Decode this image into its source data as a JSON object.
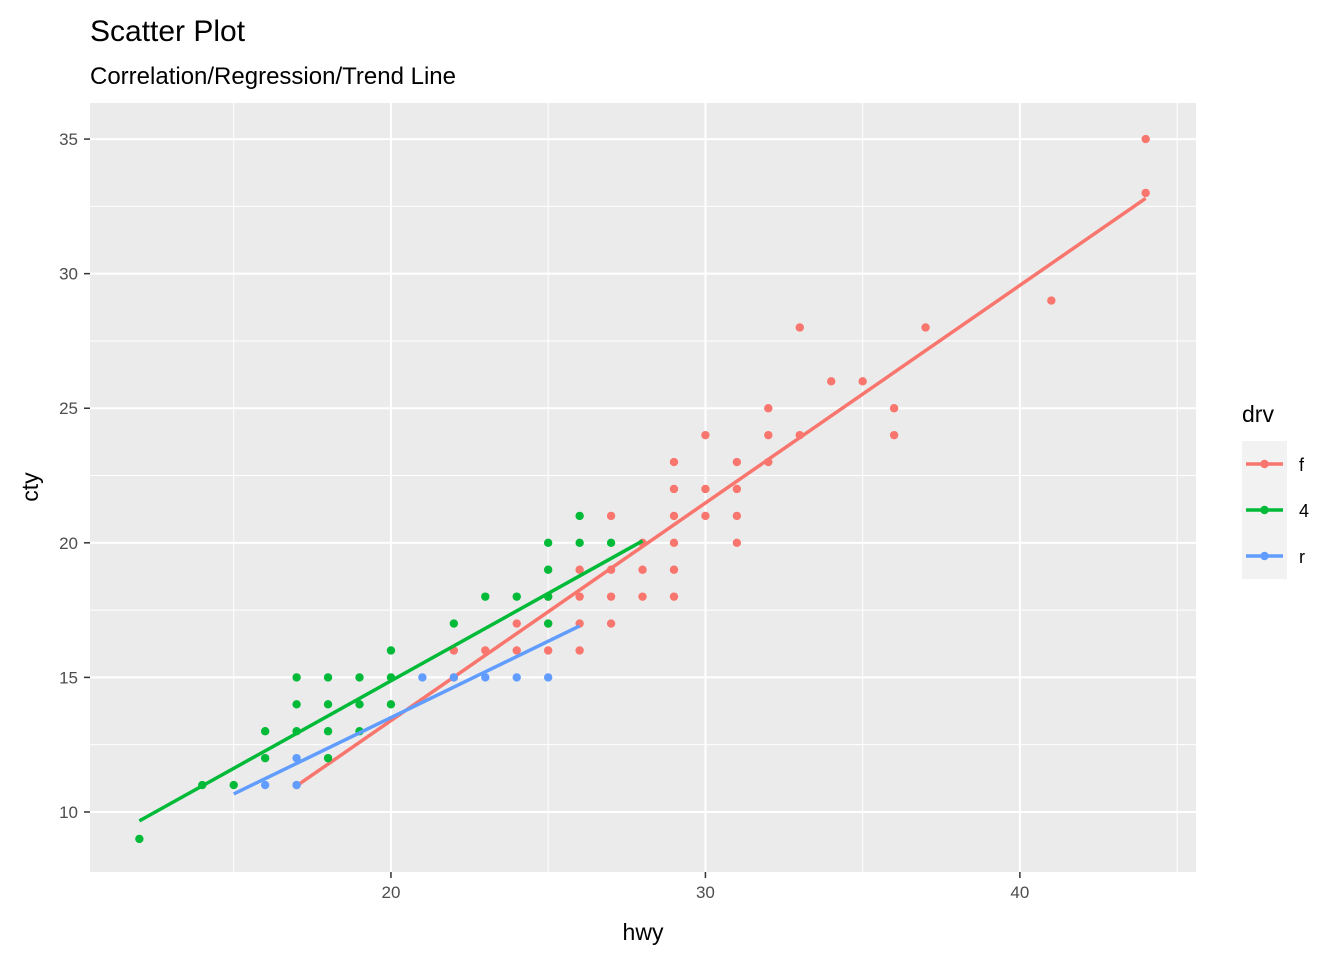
{
  "chart_data": {
    "type": "scatter",
    "title": "Scatter Plot",
    "subtitle": "Correlation/Regression/Trend Line",
    "x_label": "hwy",
    "y_label": "cty",
    "xlim": [
      10.43,
      45.6
    ],
    "ylim": [
      7.77,
      36.34
    ],
    "xticks": [
      20,
      30,
      40
    ],
    "yticks": [
      10,
      15,
      20,
      25,
      30,
      35
    ],
    "xminor": [
      15,
      25,
      35,
      45
    ],
    "yminor": [
      12.5,
      17.5,
      22.5,
      27.5,
      32.5
    ],
    "grid": true,
    "legend_title": "drv",
    "legend_position": "right",
    "series": [
      {
        "name": "f",
        "color": "#F8766D",
        "x": [
          44,
          44,
          41,
          37,
          33,
          34,
          35,
          36,
          36,
          32,
          32,
          33,
          32,
          31,
          31,
          31,
          31,
          30,
          30,
          30,
          29,
          29,
          29,
          29,
          29,
          29,
          28,
          28,
          28,
          27,
          27,
          27,
          27,
          26,
          26,
          26,
          26,
          25,
          25,
          25,
          24,
          24,
          23,
          22,
          22,
          17
        ],
        "y": [
          35,
          33,
          29,
          28,
          28,
          26,
          26,
          25,
          24,
          25,
          24,
          24,
          23,
          23,
          22,
          21,
          20,
          24,
          22,
          21,
          23,
          22,
          21,
          20,
          19,
          18,
          20,
          19,
          18,
          21,
          19,
          18,
          17,
          19,
          18,
          17,
          16,
          18,
          17,
          16,
          17,
          16,
          16,
          16,
          15,
          11
        ],
        "fit_x": [
          17,
          44
        ],
        "fit_y": [
          10.97,
          32.8
        ]
      },
      {
        "name": "4",
        "color": "#00BA38",
        "x": [
          12,
          14,
          15,
          16,
          16,
          17,
          17,
          17,
          18,
          18,
          18,
          18,
          19,
          19,
          19,
          20,
          20,
          20,
          22,
          23,
          24,
          25,
          25,
          25,
          25,
          26,
          26,
          27
        ],
        "y": [
          9,
          11,
          11,
          13,
          12,
          15,
          14,
          13,
          15,
          14,
          13,
          12,
          15,
          14,
          13,
          16,
          15,
          14,
          17,
          18,
          18,
          20,
          19,
          18,
          17,
          21,
          20,
          20
        ],
        "fit_x": [
          12,
          28
        ],
        "fit_y": [
          9.67,
          20.07
        ]
      },
      {
        "name": "r",
        "color": "#619CFF",
        "x": [
          16,
          17,
          17,
          21,
          22,
          23,
          24,
          25
        ],
        "y": [
          11,
          12,
          11,
          15,
          15,
          15,
          15,
          15
        ],
        "fit_x": [
          15,
          26
        ],
        "fit_y": [
          10.67,
          16.91
        ]
      }
    ]
  }
}
